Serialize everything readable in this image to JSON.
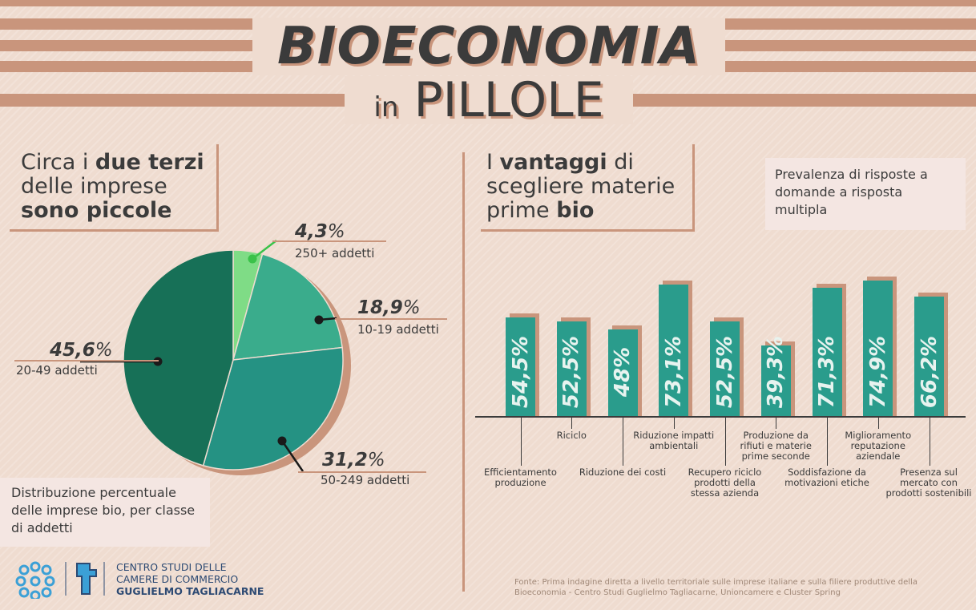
{
  "header": {
    "title_main": "BIOECONOMIA",
    "title_in": "in",
    "title_pill": "PILLOLE"
  },
  "left": {
    "heading_l1_a": "Circa i ",
    "heading_l1_b": "due terzi",
    "heading_l2": "delle imprese",
    "heading_l3": "sono piccole",
    "caption": "Distribuzione percentuale delle imprese bio, per classe di addetti"
  },
  "right": {
    "heading_l1_a": "I ",
    "heading_l1_b": "vantaggi",
    "heading_l1_c": " di",
    "heading_l2": "scegliere materie",
    "heading_l3_a": "prime ",
    "heading_l3_b": "bio",
    "note": "Prevalenza di risposte a domande a risposta multipla"
  },
  "chart_data": [
    {
      "type": "pie",
      "slices": [
        {
          "label": "250+  addetti",
          "value": 4.3,
          "value_label": "4,3",
          "color": "#7fdc86"
        },
        {
          "label": "10-19 addetti",
          "value": 18.9,
          "value_label": "18,9",
          "color": "#3aac8c"
        },
        {
          "label": "50-249 addetti",
          "value": 31.2,
          "value_label": "31,2",
          "color": "#259283"
        },
        {
          "label": "20-49 addetti",
          "value": 45.6,
          "value_label": "45,6",
          "color": "#177057"
        }
      ],
      "percent_symbol": "%"
    },
    {
      "type": "bar",
      "categories": [
        "Efficientamento produzione",
        "Riciclo",
        "Riduzione dei costi",
        "Riduzione impatti ambientali",
        "Recupero riciclo prodotti della stessa azienda",
        "Produzione da rifiuti e materie prime seconde",
        "Soddisfazione da motivazioni etiche",
        "Miglioramento reputazione aziendale",
        "Presenza sul mercato con prodotti sostenibili"
      ],
      "values": [
        54.5,
        52.5,
        48,
        73.1,
        52.5,
        39.3,
        71.3,
        74.9,
        66.2
      ],
      "value_labels": [
        "54,5%",
        "52,5%",
        "48%",
        "73,1%",
        "52,5%",
        "39,3%",
        "71,3%",
        "74,9%",
        "66,2%"
      ],
      "color": "#2a9c8c"
    }
  ],
  "source": "Fonte: Prima indagine diretta a livello territoriale sulle imprese italiane e sulla filiere produttive della Bioeconomia - Centro Studi Guglielmo Tagliacarne, Unioncamere e Cluster Spring",
  "logo": {
    "line1": "CENTRO STUDI DELLE",
    "line2": "CAMERE DI COMMERCIO",
    "line3": "GUGLIELMO TAGLIACARNE"
  }
}
